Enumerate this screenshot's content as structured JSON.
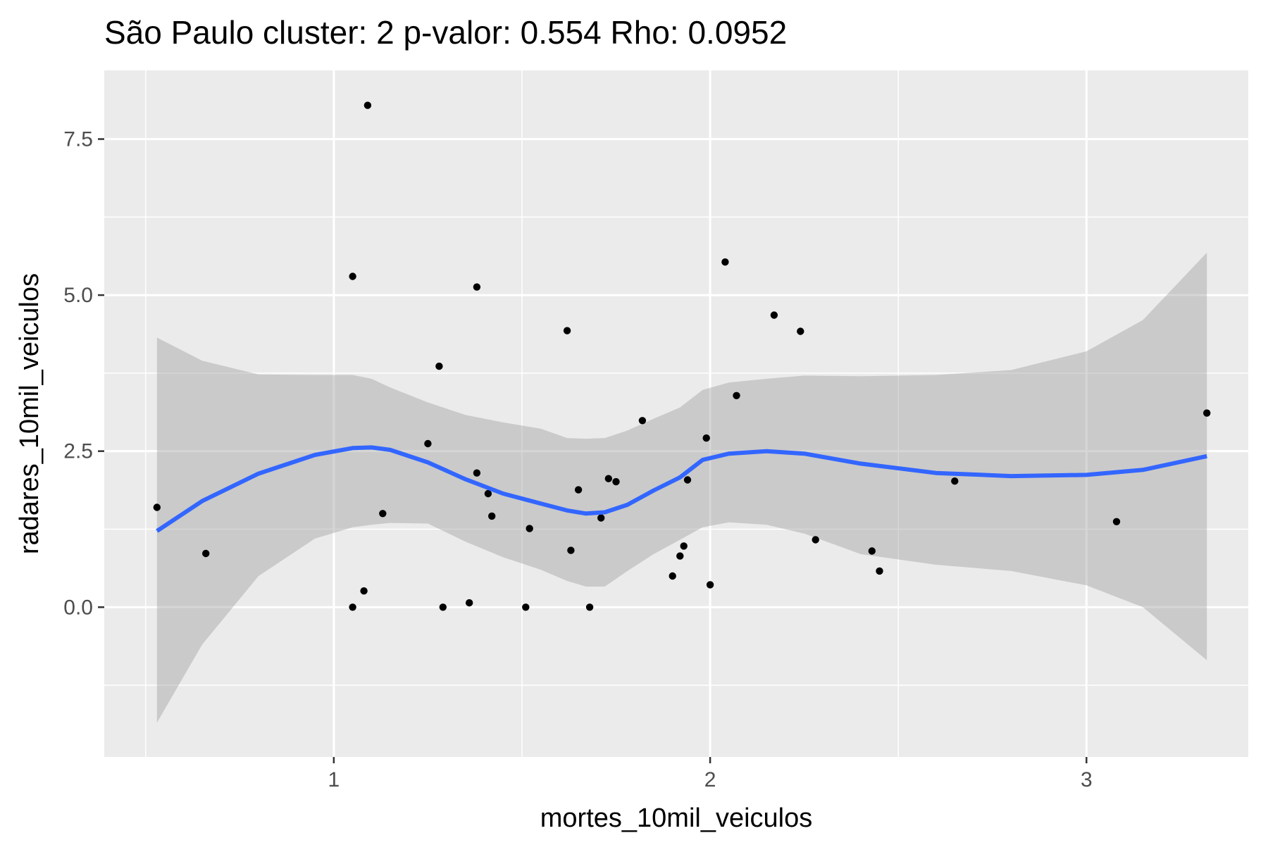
{
  "chart_data": {
    "type": "scatter",
    "title": "São Paulo cluster: 2 p-valor: 0.554 Rho: 0.0952",
    "xlabel": "mortes_10mil_veiculos",
    "ylabel": "radares_10mil_veiculos",
    "xlim": [
      0.39,
      3.43
    ],
    "ylim": [
      -2.4,
      8.6
    ],
    "x_ticks": [
      1,
      2,
      3
    ],
    "x_tick_labels": [
      "1",
      "2",
      "3"
    ],
    "y_ticks": [
      0,
      2.5,
      5,
      7.5
    ],
    "y_tick_labels": [
      "0.0",
      "2.5",
      "5.0",
      "7.5"
    ],
    "grid": true,
    "background": "#ebebeb",
    "points": [
      {
        "x": 0.53,
        "y": 1.6
      },
      {
        "x": 0.66,
        "y": 0.86
      },
      {
        "x": 1.05,
        "y": 5.3
      },
      {
        "x": 1.05,
        "y": 0.0
      },
      {
        "x": 1.08,
        "y": 0.26
      },
      {
        "x": 1.09,
        "y": 8.04
      },
      {
        "x": 1.13,
        "y": 1.5
      },
      {
        "x": 1.25,
        "y": 2.62
      },
      {
        "x": 1.28,
        "y": 3.86
      },
      {
        "x": 1.29,
        "y": 0.0
      },
      {
        "x": 1.36,
        "y": 0.07
      },
      {
        "x": 1.38,
        "y": 5.13
      },
      {
        "x": 1.38,
        "y": 2.15
      },
      {
        "x": 1.41,
        "y": 1.82
      },
      {
        "x": 1.42,
        "y": 1.46
      },
      {
        "x": 1.51,
        "y": 0.0
      },
      {
        "x": 1.52,
        "y": 1.26
      },
      {
        "x": 1.62,
        "y": 4.43
      },
      {
        "x": 1.63,
        "y": 0.91
      },
      {
        "x": 1.65,
        "y": 1.88
      },
      {
        "x": 1.68,
        "y": 0.0
      },
      {
        "x": 1.71,
        "y": 1.43
      },
      {
        "x": 1.73,
        "y": 2.06
      },
      {
        "x": 1.75,
        "y": 2.01
      },
      {
        "x": 1.82,
        "y": 2.99
      },
      {
        "x": 1.9,
        "y": 0.5
      },
      {
        "x": 1.92,
        "y": 0.82
      },
      {
        "x": 1.93,
        "y": 0.98
      },
      {
        "x": 1.94,
        "y": 2.04
      },
      {
        "x": 1.99,
        "y": 2.71
      },
      {
        "x": 2.0,
        "y": 0.36
      },
      {
        "x": 2.04,
        "y": 5.53
      },
      {
        "x": 2.07,
        "y": 3.39
      },
      {
        "x": 2.17,
        "y": 4.68
      },
      {
        "x": 2.24,
        "y": 4.42
      },
      {
        "x": 2.28,
        "y": 1.08
      },
      {
        "x": 2.43,
        "y": 0.9
      },
      {
        "x": 2.45,
        "y": 0.58
      },
      {
        "x": 2.65,
        "y": 2.02
      },
      {
        "x": 3.08,
        "y": 1.37
      },
      {
        "x": 3.32,
        "y": 3.11
      }
    ],
    "smooth": {
      "method": "loess",
      "color": "#3366ff",
      "band_color": "#999999",
      "x": [
        0.53,
        0.65,
        0.8,
        0.95,
        1.05,
        1.1,
        1.15,
        1.25,
        1.35,
        1.45,
        1.55,
        1.62,
        1.67,
        1.72,
        1.78,
        1.85,
        1.92,
        1.98,
        2.05,
        2.15,
        2.25,
        2.4,
        2.6,
        2.8,
        3.0,
        3.15,
        3.32
      ],
      "y": [
        1.22,
        1.7,
        2.14,
        2.44,
        2.55,
        2.56,
        2.52,
        2.32,
        2.05,
        1.82,
        1.66,
        1.55,
        1.5,
        1.52,
        1.64,
        1.87,
        2.08,
        2.36,
        2.46,
        2.5,
        2.46,
        2.3,
        2.15,
        2.1,
        2.12,
        2.2,
        2.42
      ],
      "ymin": [
        -1.85,
        -0.6,
        0.5,
        1.1,
        1.28,
        1.32,
        1.35,
        1.34,
        1.05,
        0.8,
        0.6,
        0.42,
        0.33,
        0.33,
        0.58,
        0.85,
        1.08,
        1.28,
        1.36,
        1.32,
        1.18,
        0.85,
        0.68,
        0.58,
        0.35,
        0.0,
        -0.85
      ],
      "ymax": [
        4.32,
        3.95,
        3.73,
        3.72,
        3.72,
        3.66,
        3.52,
        3.28,
        3.08,
        2.96,
        2.86,
        2.71,
        2.7,
        2.71,
        2.83,
        3.02,
        3.2,
        3.48,
        3.6,
        3.66,
        3.71,
        3.7,
        3.72,
        3.8,
        4.1,
        4.6,
        5.68
      ]
    }
  }
}
